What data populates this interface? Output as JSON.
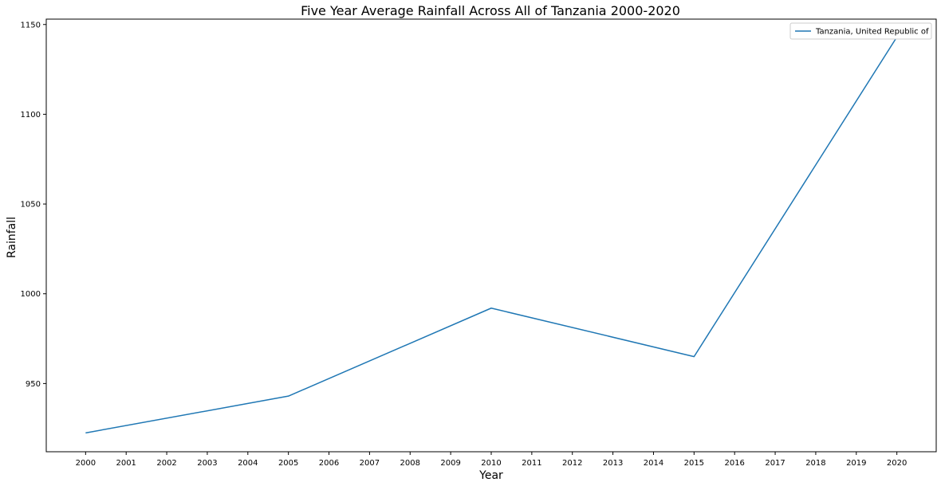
{
  "chart_data": {
    "type": "line",
    "title": "Five Year Average Rainfall Across All of Tanzania 2000-2020",
    "xlabel": "Year",
    "ylabel": "Rainfall",
    "x_ticks": [
      "2000",
      "2001",
      "2002",
      "2003",
      "2004",
      "2005",
      "2006",
      "2007",
      "2008",
      "2009",
      "2010",
      "2011",
      "2012",
      "2013",
      "2014",
      "2015",
      "2016",
      "2017",
      "2018",
      "2019",
      "2020"
    ],
    "y_ticks": [
      950,
      1000,
      1050,
      1100,
      1150
    ],
    "ylim": [
      912,
      1153
    ],
    "xlim": [
      1999.03,
      2020.97
    ],
    "grid": false,
    "legend_position": "top-right",
    "series": [
      {
        "name": "Tanzania, United Republic of",
        "color": "#1f77b4",
        "x": [
          2000,
          2005,
          2010,
          2015,
          2020
        ],
        "y": [
          922.5,
          943,
          992,
          965,
          1143
        ]
      }
    ]
  }
}
